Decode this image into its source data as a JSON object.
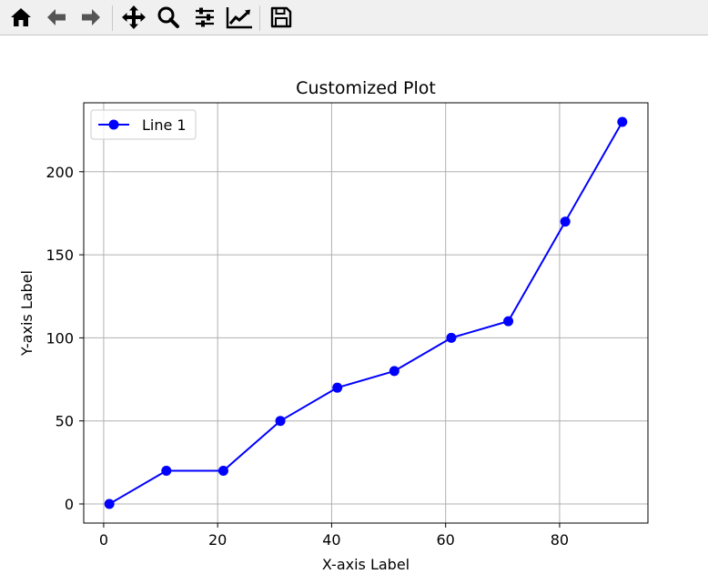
{
  "toolbar": {
    "buttons": [
      {
        "name": "home-icon",
        "label": "Home"
      },
      {
        "name": "back-icon",
        "label": "Back"
      },
      {
        "name": "forward-icon",
        "label": "Forward"
      },
      {
        "name": "pan-icon",
        "label": "Pan"
      },
      {
        "name": "zoom-icon",
        "label": "Zoom"
      },
      {
        "name": "subplots-icon",
        "label": "Subplots"
      },
      {
        "name": "customize-icon",
        "label": "Customize"
      },
      {
        "name": "save-icon",
        "label": "Save"
      }
    ]
  },
  "colors": {
    "line": "#0000ff",
    "grid": "#b0b0b0",
    "toolbar_bg": "#f0f0f0"
  },
  "chart_data": {
    "type": "line",
    "title": "Customized Plot",
    "xlabel": "X-axis Label",
    "ylabel": "Y-axis Label",
    "xlim": [
      -3.5,
      95.5
    ],
    "ylim": [
      -11.5,
      241.5
    ],
    "xticks": [
      0,
      20,
      40,
      60,
      80
    ],
    "yticks": [
      0,
      50,
      100,
      150,
      200
    ],
    "grid": true,
    "legend": {
      "placement": "upper-left"
    },
    "series": [
      {
        "name": "Line 1",
        "color": "#0000ff",
        "marker": "circle",
        "x": [
          1,
          11,
          21,
          31,
          41,
          51,
          61,
          71,
          81,
          91
        ],
        "y": [
          0,
          20,
          20,
          50,
          70,
          80,
          100,
          110,
          170,
          230
        ]
      }
    ]
  }
}
